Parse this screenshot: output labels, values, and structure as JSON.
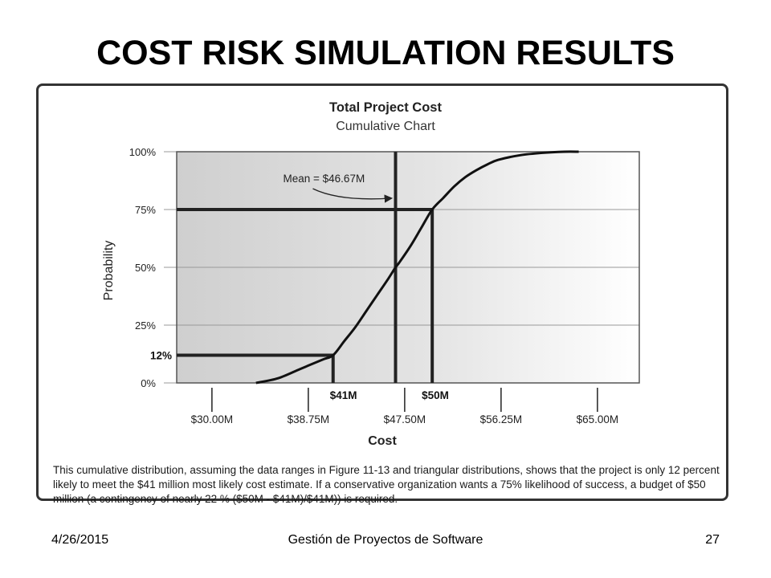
{
  "slide": {
    "title": "COST RISK SIMULATION RESULTS",
    "caption": "This cumulative distribution, assuming the data ranges in Figure 11-13 and triangular distributions, shows that the project is only 12 percent likely to meet the $41 million most likely cost estimate. If a conservative organization wants a 75% likelihood of success, a budget of $50 million (a contingency of nearly 22 % ($50M - $41M)/$41M)) is required.",
    "footer": {
      "date": "4/26/2015",
      "course": "Gestión de Proyectos de Software",
      "page": "27"
    }
  },
  "chart_data": {
    "type": "line",
    "title": "Total Project Cost",
    "subtitle": "Cumulative Chart",
    "xlabel": "Cost",
    "ylabel": "Probability",
    "xlim": [
      27,
      32
    ],
    "ylim": [
      0,
      100
    ],
    "x_ticks": [
      {
        "value": 30.0,
        "label": "$30.00M"
      },
      {
        "value": 38.75,
        "label": "$38.75M"
      },
      {
        "value": 47.5,
        "label": "$47.50M"
      },
      {
        "value": 56.25,
        "label": "$56.25M"
      },
      {
        "value": 65.0,
        "label": "$65.00M"
      }
    ],
    "y_ticks": [
      {
        "value": 0,
        "label": "0%"
      },
      {
        "value": 25,
        "label": "25%"
      },
      {
        "value": 50,
        "label": "50%"
      },
      {
        "value": 75,
        "label": "75%"
      },
      {
        "value": 100,
        "label": "100%"
      }
    ],
    "x_range": [
      26.8,
      68.8
    ],
    "series": [
      {
        "x": [
          34.0,
          36.0,
          38.0,
          40.0,
          41.0,
          42.0,
          43.0,
          44.0,
          45.0,
          46.0,
          46.67,
          47.0,
          48.0,
          49.0,
          50.0,
          51.0,
          52.0,
          53.0,
          54.0,
          55.0,
          56.0,
          58.0,
          60.0,
          62.0,
          63.3
        ],
        "y": [
          0,
          2,
          6,
          10,
          12,
          18,
          24,
          31,
          38,
          45,
          50,
          52,
          59,
          67,
          75,
          80,
          85,
          89,
          92,
          94.5,
          96.5,
          98.5,
          99.5,
          100,
          100
        ]
      }
    ],
    "markers": {
      "mean": {
        "x": 46.67,
        "label": "Mean = $46.67M"
      },
      "point_41": {
        "x": 41.0,
        "y": 12,
        "label": "$41M",
        "ylabel": "12%"
      },
      "point_50": {
        "x": 50.0,
        "y": 75,
        "label": "$50M"
      }
    },
    "grid": true,
    "legend": "none"
  },
  "colors": {
    "shade": "#d2d2d2",
    "curve": "#111111",
    "marker_line": "#222222",
    "grid": "#999999"
  }
}
